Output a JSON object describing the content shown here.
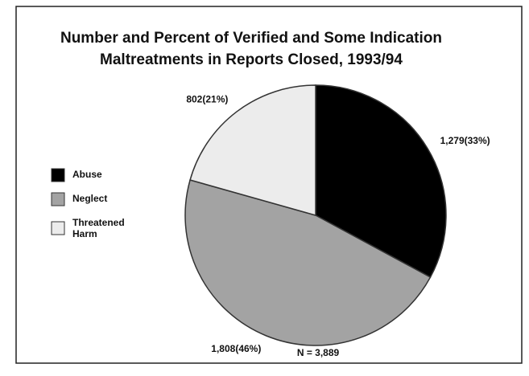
{
  "chart_data": {
    "type": "pie",
    "title": [
      "Number and Percent of Verified and Some Indication",
      "Maltreatments in Reports Closed, 1993/94"
    ],
    "categories": [
      "Abuse",
      "Neglect",
      "Threatened Harm"
    ],
    "values": [
      1279,
      1808,
      802
    ],
    "value_labels": [
      "1,279(33%)",
      "1,808(46%)",
      "802(21%)"
    ],
    "colors": [
      "#000000",
      "#a3a3a3",
      "#ececec"
    ],
    "annotation": "N = 3,889",
    "legend": "left"
  }
}
